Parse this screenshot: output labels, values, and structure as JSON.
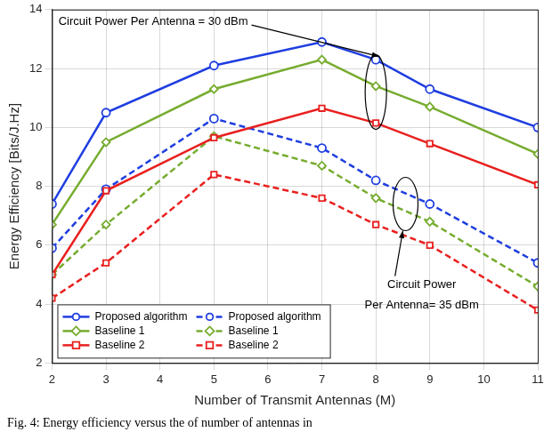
{
  "chart_data": {
    "type": "line",
    "x_label": "Number of Transmit Antennas (M)",
    "y_label": "Energy Efficiency [Bits/J.Hz]",
    "caption": "Fig. 4: Energy efficiency versus the of number of antennas in",
    "annotations": [
      "Circuit Power Per Antenna = 30 dBm",
      "Circuit Power",
      "Per Antenna= 35 dBm"
    ],
    "x": [
      2,
      3,
      5,
      7,
      8,
      9,
      11
    ],
    "xlim": [
      2,
      11
    ],
    "xticks": [
      2,
      3,
      4,
      5,
      6,
      7,
      8,
      9,
      10,
      11
    ],
    "ylim": [
      2,
      14
    ],
    "yticks": [
      2,
      4,
      6,
      8,
      10,
      12,
      14
    ],
    "grid": true,
    "legend": "lower left",
    "series": [
      {
        "name": "Proposed algorithm",
        "color": "#1f3ee0",
        "marker": "circle",
        "line_style": "solid",
        "values": [
          7.4,
          10.5,
          12.1,
          12.9,
          12.3,
          11.3,
          10.0
        ]
      },
      {
        "name": "Baseline 1",
        "color": "#77ac30",
        "marker": "diamond",
        "line_style": "solid",
        "values": [
          6.7,
          9.5,
          11.3,
          12.3,
          11.4,
          10.7,
          9.1
        ]
      },
      {
        "name": "Baseline 2",
        "color": "#e8201f",
        "marker": "square",
        "line_style": "solid",
        "values": [
          5.0,
          7.85,
          9.65,
          10.65,
          10.15,
          9.45,
          8.05
        ]
      },
      {
        "name": "Proposed algorithm",
        "color": "#1f3ee0",
        "marker": "circle",
        "line_style": "dashed",
        "values": [
          5.9,
          7.9,
          10.3,
          9.3,
          8.2,
          7.4,
          5.4
        ]
      },
      {
        "name": "Baseline 1",
        "color": "#77ac30",
        "marker": "diamond",
        "line_style": "dashed",
        "values": [
          5.0,
          6.7,
          9.7,
          8.7,
          7.6,
          6.8,
          4.6
        ]
      },
      {
        "name": "Baseline 2",
        "color": "#e8201f",
        "marker": "square",
        "line_style": "dashed",
        "values": [
          4.2,
          5.4,
          8.4,
          7.6,
          6.7,
          6.0,
          3.8
        ]
      }
    ]
  }
}
